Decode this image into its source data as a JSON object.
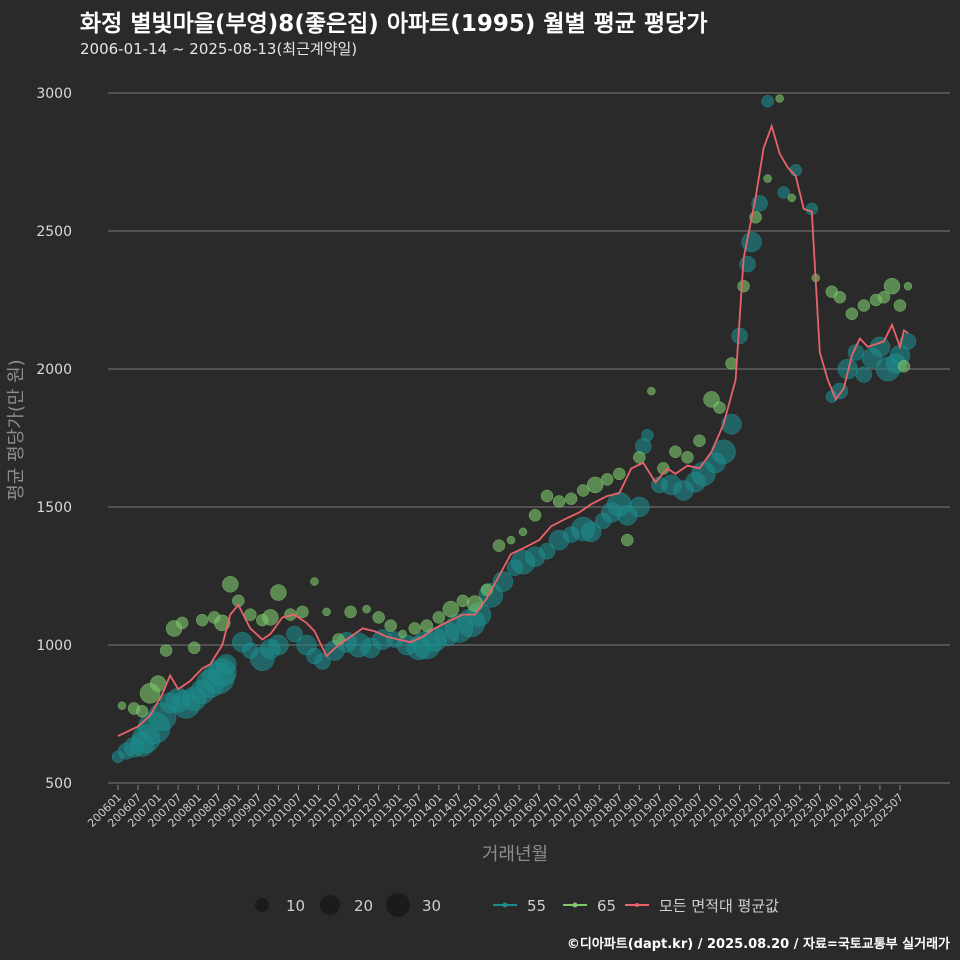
{
  "header": {
    "title": "화정 별빛마을(부영)8(좋은집) 아파트(1995) 월별 평균 평당가",
    "subtitle": "2006-01-14 ~ 2025-08-13(최근계약일)"
  },
  "footer": {
    "caption": "©디아파트(dapt.kr) / 2025.08.20 / 자료=국토교통부 실거래가"
  },
  "colors": {
    "background": "#2b2a2b",
    "grid": "#7a7a7a",
    "s55": "#1d8c8c",
    "s65": "#7dc86a",
    "avg": "#e8636a"
  },
  "chart_data": {
    "type": "scatter",
    "title": "화정 별빛마을(부영)8(좋은집) 아파트(1995) 월별 평균 평당가",
    "xlabel": "거래년월",
    "ylabel": "평균 평당가(만 원)",
    "ylim": [
      500,
      3000
    ],
    "yticks": [
      500,
      1000,
      1500,
      2000,
      2500,
      3000
    ],
    "xticks": [
      "200601",
      "200607",
      "200701",
      "200707",
      "200801",
      "200807",
      "200901",
      "200907",
      "201001",
      "201007",
      "201101",
      "201107",
      "201201",
      "201207",
      "201301",
      "201307",
      "201401",
      "201407",
      "201501",
      "201507",
      "201601",
      "201607",
      "201701",
      "201707",
      "201801",
      "201807",
      "201901",
      "201907",
      "202001",
      "202007",
      "202101",
      "202107",
      "202201",
      "202207",
      "202301",
      "202307",
      "202401",
      "202407",
      "202501",
      "202507"
    ],
    "legend": {
      "size_title": "",
      "sizes": [
        {
          "label": "10",
          "value": 10
        },
        {
          "label": "20",
          "value": 20
        },
        {
          "label": "30",
          "value": 30
        }
      ],
      "series": [
        {
          "label": "55",
          "key": "s55"
        },
        {
          "label": "65",
          "key": "s65"
        },
        {
          "label": "모든 면적대 평균값",
          "key": "avg"
        }
      ]
    },
    "avg_line": [
      [
        2006.0,
        670
      ],
      [
        2006.5,
        705
      ],
      [
        2006.8,
        745
      ],
      [
        2007.1,
        820
      ],
      [
        2007.3,
        890
      ],
      [
        2007.5,
        840
      ],
      [
        2007.8,
        870
      ],
      [
        2008.1,
        915
      ],
      [
        2008.3,
        930
      ],
      [
        2008.6,
        1000
      ],
      [
        2008.8,
        1110
      ],
      [
        2009.0,
        1145
      ],
      [
        2009.3,
        1060
      ],
      [
        2009.6,
        1020
      ],
      [
        2009.8,
        1040
      ],
      [
        2010.1,
        1100
      ],
      [
        2010.4,
        1110
      ],
      [
        2010.7,
        1080
      ],
      [
        2010.9,
        1050
      ],
      [
        2011.2,
        960
      ],
      [
        2011.5,
        1000
      ],
      [
        2011.8,
        1030
      ],
      [
        2012.1,
        1060
      ],
      [
        2012.4,
        1050
      ],
      [
        2012.7,
        1030
      ],
      [
        2013.0,
        1020
      ],
      [
        2013.3,
        1010
      ],
      [
        2013.6,
        1030
      ],
      [
        2013.9,
        1060
      ],
      [
        2014.3,
        1090
      ],
      [
        2014.6,
        1110
      ],
      [
        2014.9,
        1110
      ],
      [
        2015.2,
        1170
      ],
      [
        2015.5,
        1250
      ],
      [
        2015.8,
        1330
      ],
      [
        2016.1,
        1350
      ],
      [
        2016.5,
        1380
      ],
      [
        2016.8,
        1430
      ],
      [
        2017.2,
        1460
      ],
      [
        2017.5,
        1480
      ],
      [
        2017.8,
        1510
      ],
      [
        2018.2,
        1540
      ],
      [
        2018.5,
        1550
      ],
      [
        2018.8,
        1640
      ],
      [
        2019.1,
        1660
      ],
      [
        2019.4,
        1590
      ],
      [
        2019.7,
        1640
      ],
      [
        2019.9,
        1620
      ],
      [
        2020.2,
        1650
      ],
      [
        2020.5,
        1640
      ],
      [
        2020.8,
        1700
      ],
      [
        2021.1,
        1800
      ],
      [
        2021.4,
        1960
      ],
      [
        2021.6,
        2400
      ],
      [
        2021.9,
        2620
      ],
      [
        2022.1,
        2800
      ],
      [
        2022.3,
        2880
      ],
      [
        2022.5,
        2780
      ],
      [
        2022.7,
        2730
      ],
      [
        2022.9,
        2700
      ],
      [
        2023.1,
        2580
      ],
      [
        2023.3,
        2570
      ],
      [
        2023.5,
        2060
      ],
      [
        2023.7,
        1960
      ],
      [
        2023.9,
        1890
      ],
      [
        2024.1,
        1930
      ],
      [
        2024.3,
        2050
      ],
      [
        2024.5,
        2110
      ],
      [
        2024.7,
        2080
      ],
      [
        2024.9,
        2090
      ],
      [
        2025.1,
        2100
      ],
      [
        2025.3,
        2160
      ],
      [
        2025.5,
        2080
      ],
      [
        2025.6,
        2140
      ],
      [
        2025.7,
        2130
      ]
    ],
    "series": [
      {
        "name": "55",
        "points": [
          [
            2006.0,
            595,
            6
          ],
          [
            2006.2,
            615,
            8
          ],
          [
            2006.4,
            630,
            10
          ],
          [
            2006.6,
            640,
            12
          ],
          [
            2006.7,
            660,
            14
          ],
          [
            2006.9,
            700,
            16
          ],
          [
            2007.1,
            740,
            14
          ],
          [
            2007.3,
            790,
            10
          ],
          [
            2007.5,
            800,
            12
          ],
          [
            2007.7,
            785,
            14
          ],
          [
            2007.9,
            805,
            12
          ],
          [
            2008.1,
            830,
            12
          ],
          [
            2008.3,
            860,
            14
          ],
          [
            2008.5,
            880,
            16
          ],
          [
            2008.6,
            900,
            14
          ],
          [
            2008.7,
            930,
            10
          ],
          [
            2009.1,
            1010,
            10
          ],
          [
            2009.3,
            980,
            8
          ],
          [
            2009.6,
            950,
            12
          ],
          [
            2009.8,
            985,
            10
          ],
          [
            2010.0,
            1000,
            10
          ],
          [
            2010.4,
            1040,
            8
          ],
          [
            2010.7,
            1000,
            10
          ],
          [
            2010.9,
            960,
            8
          ],
          [
            2011.1,
            940,
            8
          ],
          [
            2011.4,
            980,
            10
          ],
          [
            2011.7,
            1010,
            10
          ],
          [
            2012.0,
            1000,
            12
          ],
          [
            2012.3,
            990,
            10
          ],
          [
            2012.6,
            1020,
            10
          ],
          [
            2012.9,
            1020,
            8
          ],
          [
            2013.2,
            1000,
            10
          ],
          [
            2013.5,
            990,
            12
          ],
          [
            2013.7,
            1000,
            14
          ],
          [
            2013.9,
            1020,
            12
          ],
          [
            2014.2,
            1040,
            12
          ],
          [
            2014.5,
            1060,
            14
          ],
          [
            2014.8,
            1080,
            14
          ],
          [
            2015.0,
            1110,
            12
          ],
          [
            2015.3,
            1180,
            12
          ],
          [
            2015.6,
            1230,
            10
          ],
          [
            2015.9,
            1280,
            8
          ],
          [
            2016.1,
            1300,
            12
          ],
          [
            2016.4,
            1320,
            10
          ],
          [
            2016.7,
            1340,
            8
          ],
          [
            2017.0,
            1380,
            10
          ],
          [
            2017.3,
            1400,
            8
          ],
          [
            2017.6,
            1420,
            12
          ],
          [
            2017.8,
            1410,
            10
          ],
          [
            2018.1,
            1450,
            8
          ],
          [
            2018.3,
            1480,
            10
          ],
          [
            2018.5,
            1510,
            12
          ],
          [
            2018.7,
            1470,
            10
          ],
          [
            2019.0,
            1500,
            10
          ],
          [
            2019.1,
            1720,
            8
          ],
          [
            2019.2,
            1760,
            6
          ],
          [
            2019.5,
            1580,
            8
          ],
          [
            2019.8,
            1580,
            10
          ],
          [
            2020.1,
            1560,
            10
          ],
          [
            2020.4,
            1590,
            10
          ],
          [
            2020.6,
            1620,
            12
          ],
          [
            2020.9,
            1660,
            10
          ],
          [
            2021.1,
            1700,
            12
          ],
          [
            2021.3,
            1800,
            10
          ],
          [
            2021.5,
            2120,
            8
          ],
          [
            2021.7,
            2380,
            8
          ],
          [
            2021.8,
            2460,
            10
          ],
          [
            2022.0,
            2600,
            8
          ],
          [
            2022.2,
            2970,
            6
          ],
          [
            2022.6,
            2640,
            6
          ],
          [
            2022.9,
            2720,
            6
          ],
          [
            2023.3,
            2580,
            6
          ],
          [
            2023.8,
            1900,
            6
          ],
          [
            2024.0,
            1920,
            8
          ],
          [
            2024.2,
            2000,
            10
          ],
          [
            2024.4,
            2060,
            8
          ],
          [
            2024.6,
            1980,
            8
          ],
          [
            2024.8,
            2040,
            10
          ],
          [
            2025.0,
            2080,
            10
          ],
          [
            2025.2,
            2000,
            12
          ],
          [
            2025.4,
            2020,
            10
          ],
          [
            2025.5,
            2050,
            10
          ],
          [
            2025.7,
            2100,
            8
          ]
        ]
      },
      {
        "name": "65",
        "points": [
          [
            2006.1,
            780,
            4
          ],
          [
            2006.4,
            770,
            6
          ],
          [
            2006.6,
            760,
            6
          ],
          [
            2006.8,
            825,
            10
          ],
          [
            2007.0,
            860,
            8
          ],
          [
            2007.2,
            980,
            6
          ],
          [
            2007.4,
            1060,
            8
          ],
          [
            2007.6,
            1080,
            6
          ],
          [
            2007.9,
            990,
            6
          ],
          [
            2008.1,
            1090,
            6
          ],
          [
            2008.4,
            1100,
            6
          ],
          [
            2008.6,
            1080,
            8
          ],
          [
            2008.8,
            1220,
            8
          ],
          [
            2009.0,
            1160,
            6
          ],
          [
            2009.3,
            1110,
            6
          ],
          [
            2009.6,
            1090,
            6
          ],
          [
            2009.8,
            1100,
            8
          ],
          [
            2010.0,
            1190,
            8
          ],
          [
            2010.3,
            1110,
            6
          ],
          [
            2010.6,
            1120,
            6
          ],
          [
            2010.9,
            1230,
            4
          ],
          [
            2011.2,
            1120,
            4
          ],
          [
            2011.5,
            1020,
            6
          ],
          [
            2011.8,
            1120,
            6
          ],
          [
            2012.2,
            1130,
            4
          ],
          [
            2012.5,
            1100,
            6
          ],
          [
            2012.8,
            1070,
            6
          ],
          [
            2013.1,
            1040,
            4
          ],
          [
            2013.4,
            1060,
            6
          ],
          [
            2013.7,
            1070,
            6
          ],
          [
            2014.0,
            1100,
            6
          ],
          [
            2014.3,
            1130,
            8
          ],
          [
            2014.6,
            1160,
            6
          ],
          [
            2014.9,
            1150,
            8
          ],
          [
            2015.2,
            1200,
            6
          ],
          [
            2015.5,
            1360,
            6
          ],
          [
            2015.8,
            1380,
            4
          ],
          [
            2016.1,
            1410,
            4
          ],
          [
            2016.4,
            1470,
            6
          ],
          [
            2016.7,
            1540,
            6
          ],
          [
            2017.0,
            1520,
            6
          ],
          [
            2017.3,
            1530,
            6
          ],
          [
            2017.6,
            1560,
            6
          ],
          [
            2017.9,
            1580,
            8
          ],
          [
            2018.2,
            1600,
            6
          ],
          [
            2018.5,
            1620,
            6
          ],
          [
            2018.7,
            1380,
            6
          ],
          [
            2019.0,
            1680,
            6
          ],
          [
            2019.3,
            1920,
            4
          ],
          [
            2019.6,
            1640,
            6
          ],
          [
            2019.9,
            1700,
            6
          ],
          [
            2020.2,
            1680,
            6
          ],
          [
            2020.5,
            1740,
            6
          ],
          [
            2020.8,
            1890,
            8
          ],
          [
            2021.0,
            1860,
            6
          ],
          [
            2021.3,
            2020,
            6
          ],
          [
            2021.6,
            2300,
            6
          ],
          [
            2021.9,
            2550,
            6
          ],
          [
            2022.2,
            2690,
            4
          ],
          [
            2022.5,
            2980,
            4
          ],
          [
            2022.8,
            2620,
            4
          ],
          [
            2023.4,
            2330,
            4
          ],
          [
            2023.8,
            2280,
            6
          ],
          [
            2024.0,
            2260,
            6
          ],
          [
            2024.3,
            2200,
            6
          ],
          [
            2024.6,
            2230,
            6
          ],
          [
            2024.9,
            2250,
            6
          ],
          [
            2025.1,
            2260,
            6
          ],
          [
            2025.3,
            2300,
            8
          ],
          [
            2025.5,
            2230,
            6
          ],
          [
            2025.6,
            2010,
            6
          ],
          [
            2025.7,
            2300,
            4
          ]
        ]
      }
    ]
  }
}
